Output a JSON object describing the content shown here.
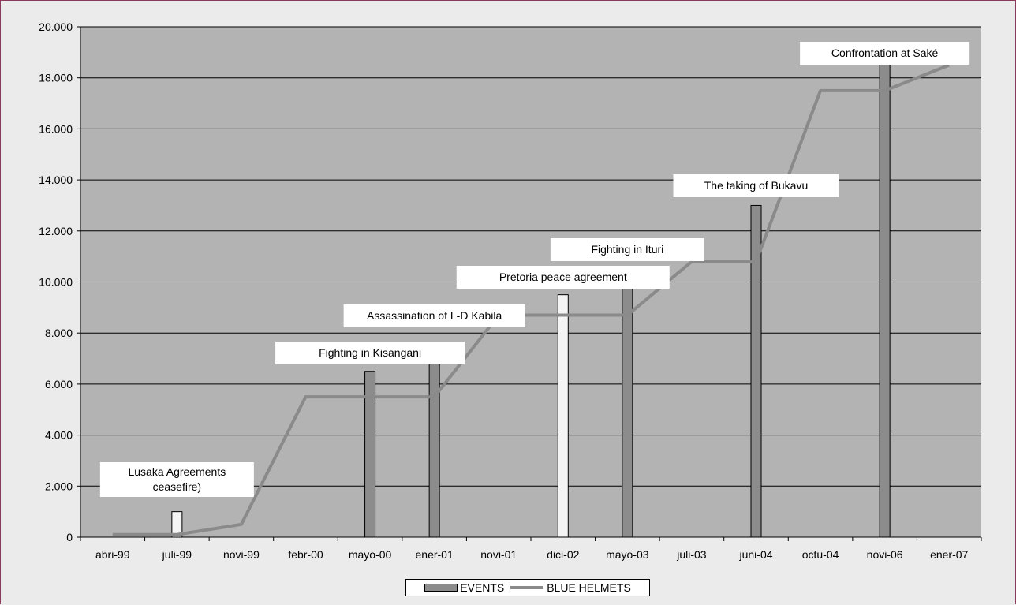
{
  "chart_data": {
    "type": "bar+line",
    "categories": [
      "abri-99",
      "juli-99",
      "novi-99",
      "febr-00",
      "mayo-00",
      "ener-01",
      "novi-01",
      "dici-02",
      "mayo-03",
      "juli-03",
      "juni-04",
      "octu-04",
      "novi-06",
      "ener-07"
    ],
    "y_ticks": [
      "0",
      "2.000",
      "4.000",
      "6.000",
      "8.000",
      "10.000",
      "12.000",
      "14.000",
      "16.000",
      "18.000",
      "20.000"
    ],
    "ylim": [
      0,
      20000
    ],
    "grid": true,
    "legend_placement": "bottom-center",
    "series": [
      {
        "name": "EVENTS",
        "kind": "bar",
        "color": "#8c8c8c",
        "highlight_color": "#f4f4f4",
        "values": [
          null,
          1000,
          null,
          null,
          6500,
          7500,
          null,
          9500,
          10500,
          null,
          13000,
          null,
          19000,
          null
        ],
        "highlighted": [
          "juli-99",
          "dici-02"
        ]
      },
      {
        "name": "BLUE HELMETS",
        "kind": "line",
        "color": "#8a8a8a",
        "values": [
          100,
          100,
          500,
          5500,
          5500,
          5500,
          8700,
          8700,
          8700,
          10800,
          10800,
          17500,
          17500,
          18500
        ]
      }
    ],
    "annotations": [
      {
        "lines": [
          "Lusaka Agreements",
          "ceasefire)"
        ],
        "category": "juli-99"
      },
      {
        "lines": [
          "Fighting in Kisangani"
        ],
        "category": "mayo-00"
      },
      {
        "lines": [
          "Assassination of L-D Kabila"
        ],
        "category": "ener-01"
      },
      {
        "lines": [
          "Pretoria peace agreement"
        ],
        "category": "dici-02"
      },
      {
        "lines": [
          "Fighting in Ituri"
        ],
        "category": "mayo-03"
      },
      {
        "lines": [
          "The taking of  Bukavu"
        ],
        "category": "juni-04"
      },
      {
        "lines": [
          "Confrontation at Saké"
        ],
        "category": "novi-06"
      }
    ]
  },
  "colors": {
    "plot_background": "#b3b3b3",
    "page_background": "#ebebeb",
    "gridline": "#000000"
  }
}
